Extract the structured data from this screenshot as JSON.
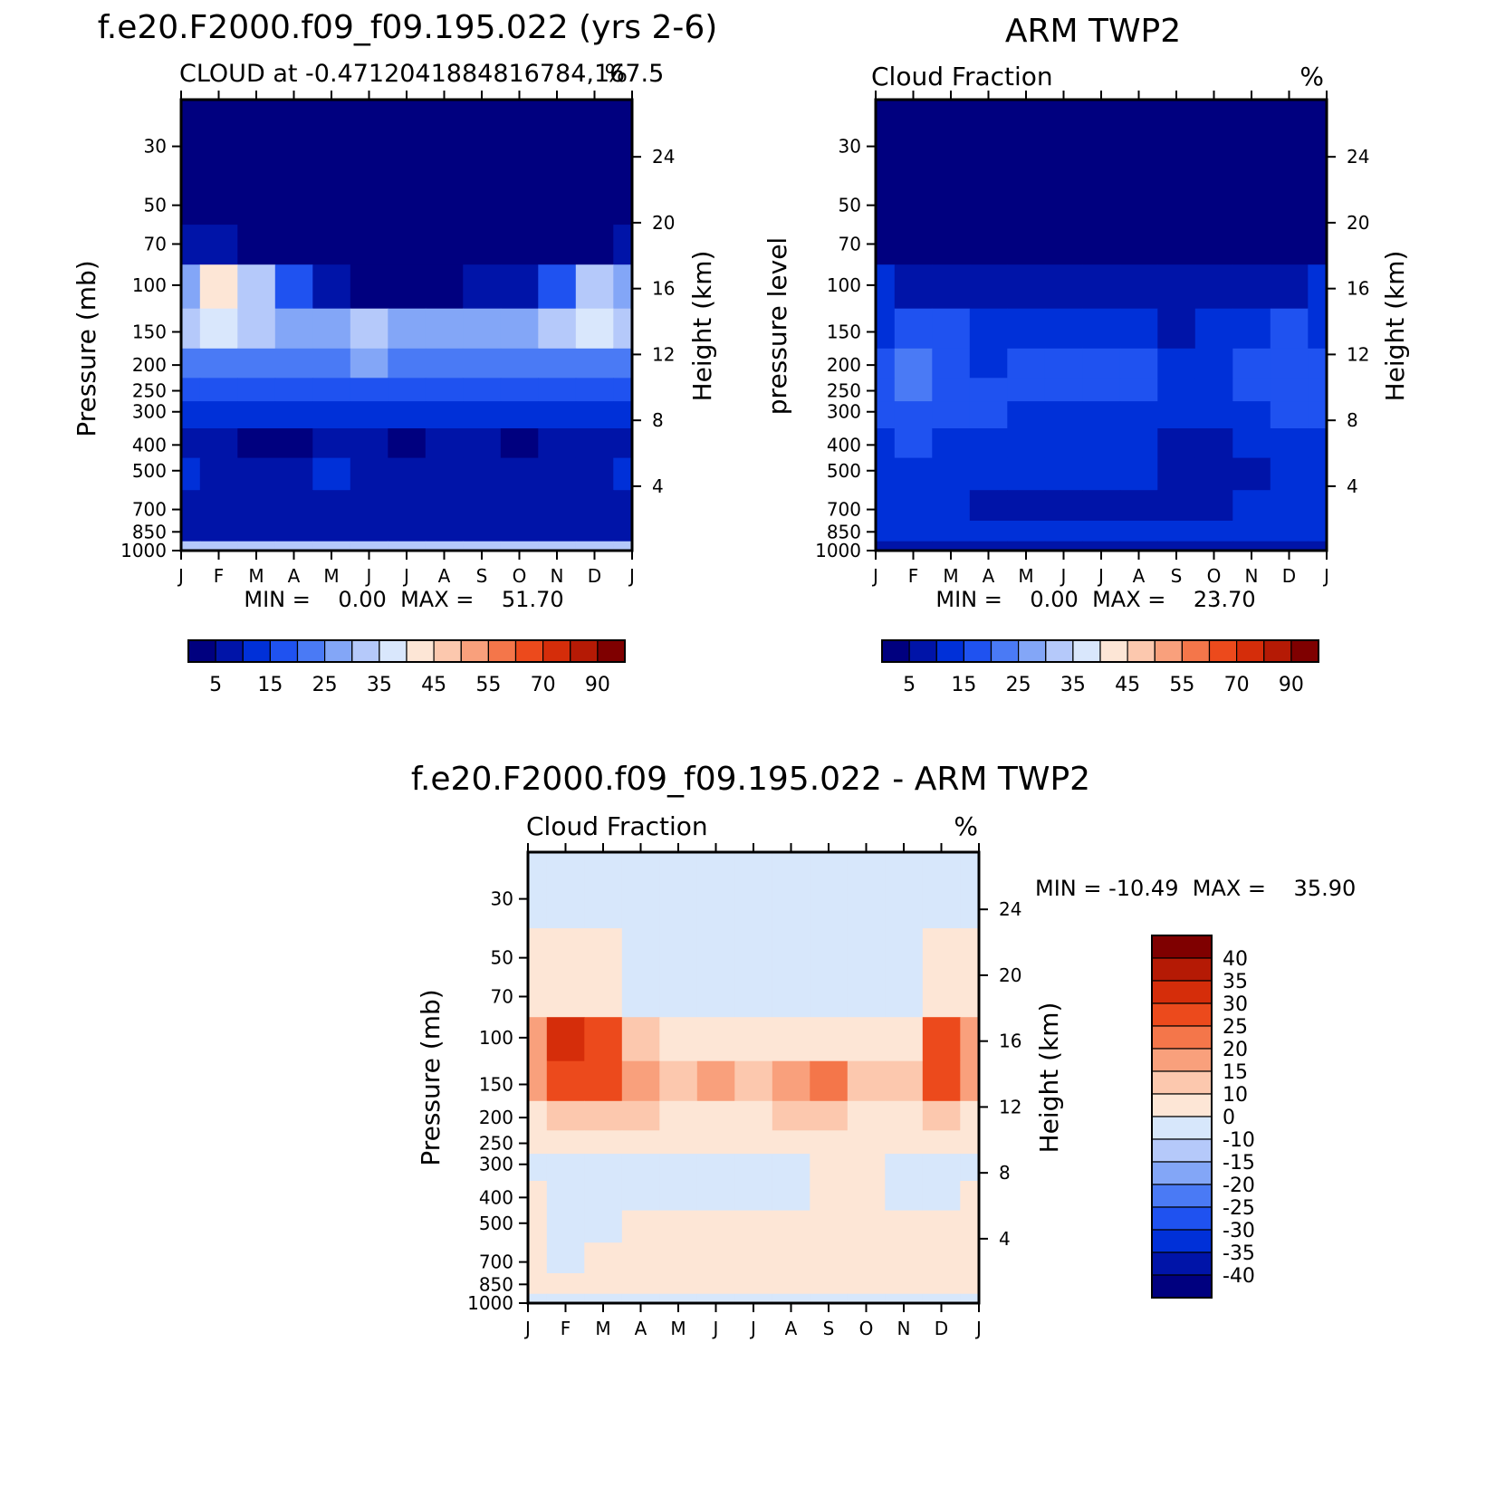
{
  "palettes": {
    "cloud": [
      "#00007f",
      "#0014a8",
      "#0030d8",
      "#1f52f0",
      "#4a7af5",
      "#83a6f7",
      "#b5c9fa",
      "#d9e7fc",
      "#fde6d6",
      "#fcc8ae",
      "#f9a07c",
      "#f4764a",
      "#ec4a1c",
      "#d52d0a",
      "#b51a05",
      "#7f0000"
    ],
    "diff": [
      "#00007f",
      "#0014a8",
      "#0030d8",
      "#1f52f0",
      "#4a7af5",
      "#83a6f7",
      "#b5c9fa",
      "#d7e7fb",
      "#fde6d6",
      "#fcc8ae",
      "#f9a07c",
      "#f4764a",
      "#ec4a1c",
      "#d52d0a",
      "#b51a05",
      "#7f0000"
    ]
  },
  "months": [
    "J",
    "F",
    "M",
    "A",
    "M",
    "J",
    "J",
    "A",
    "S",
    "O",
    "N",
    "D",
    "J"
  ],
  "pressure_ticks": [
    "30",
    "50",
    "70",
    "100",
    "150",
    "200",
    "250",
    "300",
    "400",
    "500",
    "700",
    "850",
    "1000"
  ],
  "height_ticks": [
    "24",
    "20",
    "16",
    "12",
    "8",
    "4"
  ],
  "panels": [
    {
      "id": "model",
      "main_title": "f.e20.F2000.f09_f09.195.022 (yrs 2-6)",
      "left_sub": "CLOUD at -0.4712041884816784,167.5",
      "right_sub": "%",
      "ylabel": "Pressure (mb)",
      "ylabel_right": "Height (km)",
      "minmax_label": "MIN =    0.00  MAX =    51.70"
    },
    {
      "id": "obs",
      "main_title": "ARM TWP2",
      "left_sub": "Cloud Fraction",
      "right_sub": "%",
      "ylabel": "pressure level",
      "ylabel_right": "Height (km)",
      "minmax_label": "MIN =    0.00  MAX =    23.70"
    },
    {
      "id": "diff",
      "main_title": "f.e20.F2000.f09_f09.195.022 - ARM TWP2",
      "left_sub": "Cloud Fraction",
      "right_sub": "%",
      "ylabel": "Pressure (mb)",
      "ylabel_right": "Height (km)",
      "minmax_label": "MIN = -10.49  MAX =    35.90"
    }
  ],
  "colorbar_cloud_labels": [
    "5",
    "15",
    "25",
    "35",
    "45",
    "55",
    "70",
    "90"
  ],
  "colorbar_diff_labels": [
    "40",
    "35",
    "30",
    "25",
    "20",
    "15",
    "10",
    "0",
    "-10",
    "-15",
    "-20",
    "-25",
    "-30",
    "-35",
    "-40"
  ],
  "chart_data": [
    {
      "type": "heatmap",
      "title": "f.e20.F2000.f09_f09.195.022 (yrs 2-6)",
      "subtitle": "CLOUD at -0.4712041884816784,167.5",
      "units": "%",
      "xlabel": "",
      "ylabel": "Pressure (mb)",
      "y2label": "Height (km)",
      "x": [
        "J",
        "F",
        "M",
        "A",
        "M",
        "J",
        "J",
        "A",
        "S",
        "O",
        "N",
        "D",
        "J"
      ],
      "y": [
        30,
        50,
        70,
        100,
        150,
        200,
        250,
        300,
        400,
        500,
        700,
        850,
        1000
      ],
      "min": 0.0,
      "max": 51.7,
      "values": [
        [
          0,
          0,
          0,
          0,
          0,
          0,
          0,
          0,
          0,
          0,
          0,
          0,
          0
        ],
        [
          0,
          0,
          0,
          0,
          0,
          0,
          0,
          0,
          0,
          0,
          0,
          0,
          0
        ],
        [
          5,
          5,
          2,
          0,
          0,
          0,
          0,
          0,
          0,
          0,
          0,
          2,
          5
        ],
        [
          28,
          42,
          30,
          15,
          5,
          3,
          3,
          3,
          5,
          8,
          15,
          30,
          28
        ],
        [
          30,
          38,
          32,
          25,
          28,
          32,
          28,
          27,
          27,
          28,
          30,
          36,
          30
        ],
        [
          22,
          22,
          22,
          21,
          21,
          25,
          22,
          21,
          21,
          21,
          21,
          22,
          22
        ],
        [
          15,
          15,
          15,
          15,
          15,
          15,
          15,
          15,
          15,
          15,
          15,
          15,
          15
        ],
        [
          10,
          10,
          10,
          10,
          10,
          10,
          10,
          10,
          10,
          10,
          10,
          10,
          10
        ],
        [
          7,
          6,
          3,
          3,
          6,
          8,
          2,
          6,
          7,
          3,
          7,
          7,
          7
        ],
        [
          11,
          8,
          8,
          8,
          10,
          8,
          7,
          8,
          8,
          7,
          8,
          8,
          11
        ],
        [
          8,
          8,
          5,
          5,
          5,
          5,
          5,
          6,
          5,
          5,
          5,
          8,
          8
        ],
        [
          8,
          7,
          5,
          5,
          5,
          5,
          5,
          5,
          5,
          5,
          6,
          7,
          8
        ],
        [
          30,
          30,
          30,
          30,
          30,
          30,
          30,
          30,
          30,
          30,
          30,
          30,
          30
        ]
      ]
    },
    {
      "type": "heatmap",
      "title": "ARM TWP2",
      "subtitle": "Cloud Fraction",
      "units": "%",
      "xlabel": "",
      "ylabel": "pressure level",
      "y2label": "Height (km)",
      "x": [
        "J",
        "F",
        "M",
        "A",
        "M",
        "J",
        "J",
        "A",
        "S",
        "O",
        "N",
        "D",
        "J"
      ],
      "y": [
        30,
        50,
        70,
        100,
        150,
        200,
        250,
        300,
        400,
        500,
        700,
        850,
        1000
      ],
      "min": 0.0,
      "max": 23.7,
      "values": [
        [
          0,
          0,
          0,
          0,
          0,
          0,
          0,
          0,
          0,
          0,
          0,
          0,
          0
        ],
        [
          0,
          0,
          0,
          0,
          0,
          0,
          0,
          0,
          0,
          0,
          0,
          0,
          0
        ],
        [
          0,
          0,
          0,
          0,
          0,
          0,
          0,
          0,
          0,
          0,
          0,
          0,
          0
        ],
        [
          10,
          8,
          6,
          5,
          5,
          5,
          5,
          5,
          5,
          5,
          6,
          8,
          10
        ],
        [
          14,
          16,
          15,
          12,
          12,
          14,
          14,
          13,
          8,
          10,
          13,
          15,
          14
        ],
        [
          18,
          20,
          17,
          14,
          15,
          17,
          15,
          16,
          14,
          14,
          15,
          17,
          18
        ],
        [
          17,
          20,
          16,
          15,
          15,
          16,
          15,
          15,
          14,
          14,
          15,
          16,
          17
        ],
        [
          16,
          18,
          15,
          15,
          14,
          14,
          14,
          14,
          12,
          12,
          14,
          15,
          16
        ],
        [
          14,
          15,
          14,
          12,
          10,
          10,
          10,
          10,
          8,
          8,
          10,
          12,
          14
        ],
        [
          14,
          14,
          14,
          12,
          10,
          10,
          11,
          12,
          8,
          7,
          8,
          12,
          14
        ],
        [
          12,
          12,
          10,
          8,
          8,
          8,
          8,
          8,
          8,
          5,
          10,
          12,
          12
        ],
        [
          14,
          14,
          12,
          10,
          10,
          10,
          10,
          10,
          10,
          10,
          10,
          12,
          14
        ],
        [
          8,
          8,
          8,
          8,
          8,
          8,
          8,
          8,
          8,
          8,
          8,
          8,
          8
        ]
      ]
    },
    {
      "type": "heatmap",
      "title": "f.e20.F2000.f09_f09.195.022 - ARM TWP2",
      "subtitle": "Cloud Fraction",
      "units": "%",
      "xlabel": "",
      "ylabel": "Pressure (mb)",
      "y2label": "Height (km)",
      "x": [
        "J",
        "F",
        "M",
        "A",
        "M",
        "J",
        "J",
        "A",
        "S",
        "O",
        "N",
        "D",
        "J"
      ],
      "y": [
        30,
        50,
        70,
        100,
        150,
        200,
        250,
        300,
        400,
        500,
        700,
        850,
        1000
      ],
      "min": -10.49,
      "max": 35.9,
      "values": [
        [
          -2,
          -2,
          -2,
          -2,
          -2,
          -2,
          -2,
          -2,
          -2,
          -2,
          -2,
          -2,
          -2
        ],
        [
          2,
          2,
          2,
          -2,
          -2,
          -2,
          -2,
          -2,
          -2,
          -2,
          -2,
          2,
          2
        ],
        [
          5,
          5,
          5,
          -2,
          -2,
          -5,
          -2,
          -2,
          -2,
          -2,
          -2,
          5,
          5
        ],
        [
          18,
          30,
          25,
          12,
          5,
          2,
          5,
          5,
          8,
          6,
          8,
          25,
          18
        ],
        [
          18,
          28,
          25,
          18,
          12,
          16,
          12,
          18,
          23,
          14,
          12,
          26,
          18
        ],
        [
          8,
          10,
          12,
          10,
          8,
          8,
          8,
          10,
          10,
          8,
          8,
          10,
          8
        ],
        [
          3,
          3,
          3,
          3,
          3,
          3,
          3,
          3,
          3,
          3,
          3,
          3,
          3
        ],
        [
          -3,
          -3,
          -3,
          -3,
          -2,
          -2,
          -2,
          -2,
          2,
          2,
          -3,
          -3,
          -3
        ],
        [
          3,
          -3,
          -4,
          -3,
          -3,
          -2,
          -2,
          -3,
          2,
          2,
          -3,
          -3,
          3
        ],
        [
          3,
          -3,
          -3,
          3,
          3,
          3,
          3,
          2,
          3,
          3,
          3,
          3,
          3
        ],
        [
          3,
          -3,
          3,
          3,
          3,
          3,
          3,
          3,
          3,
          3,
          3,
          3,
          3
        ],
        [
          3,
          3,
          3,
          3,
          3,
          3,
          3,
          3,
          3,
          3,
          3,
          3,
          3
        ],
        [
          -3,
          -3,
          -3,
          -3,
          -3,
          -3,
          -3,
          -3,
          -3,
          -3,
          -3,
          -3,
          -3
        ]
      ]
    }
  ]
}
